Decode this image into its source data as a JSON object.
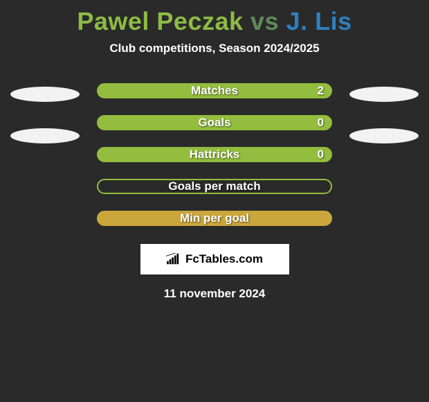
{
  "title": {
    "left": "Pawel Peczak",
    "vs": " vs ",
    "right": "J. Lis",
    "left_color": "#8dbb43",
    "vs_color": "#5f8a5a",
    "right_color": "#2f7fbf"
  },
  "subtitle": "Club competitions, Season 2024/2025",
  "side_ellipse_color": "#f2f2f2",
  "left_ellipses": 2,
  "right_ellipses": 2,
  "bars": [
    {
      "label": "Matches",
      "value": "2",
      "bg": "#93bd3e",
      "border": "#93bd3e"
    },
    {
      "label": "Goals",
      "value": "0",
      "bg": "#93bd3e",
      "border": "#93bd3e"
    },
    {
      "label": "Hattricks",
      "value": "0",
      "bg": "#93bd3e",
      "border": "#93bd3e"
    },
    {
      "label": "Goals per match",
      "value": "",
      "bg": "transparent",
      "border": "#93bd3e"
    },
    {
      "label": "Min per goal",
      "value": "",
      "bg": "#cba63a",
      "border": "#cba63a"
    }
  ],
  "brand": "FcTables.com",
  "brand_bar_colors": [
    "#000000",
    "#000000",
    "#000000",
    "#000000",
    "#000000",
    "#000000",
    "#000000"
  ],
  "date": "11 november 2024",
  "background_color": "#2a2a2a"
}
